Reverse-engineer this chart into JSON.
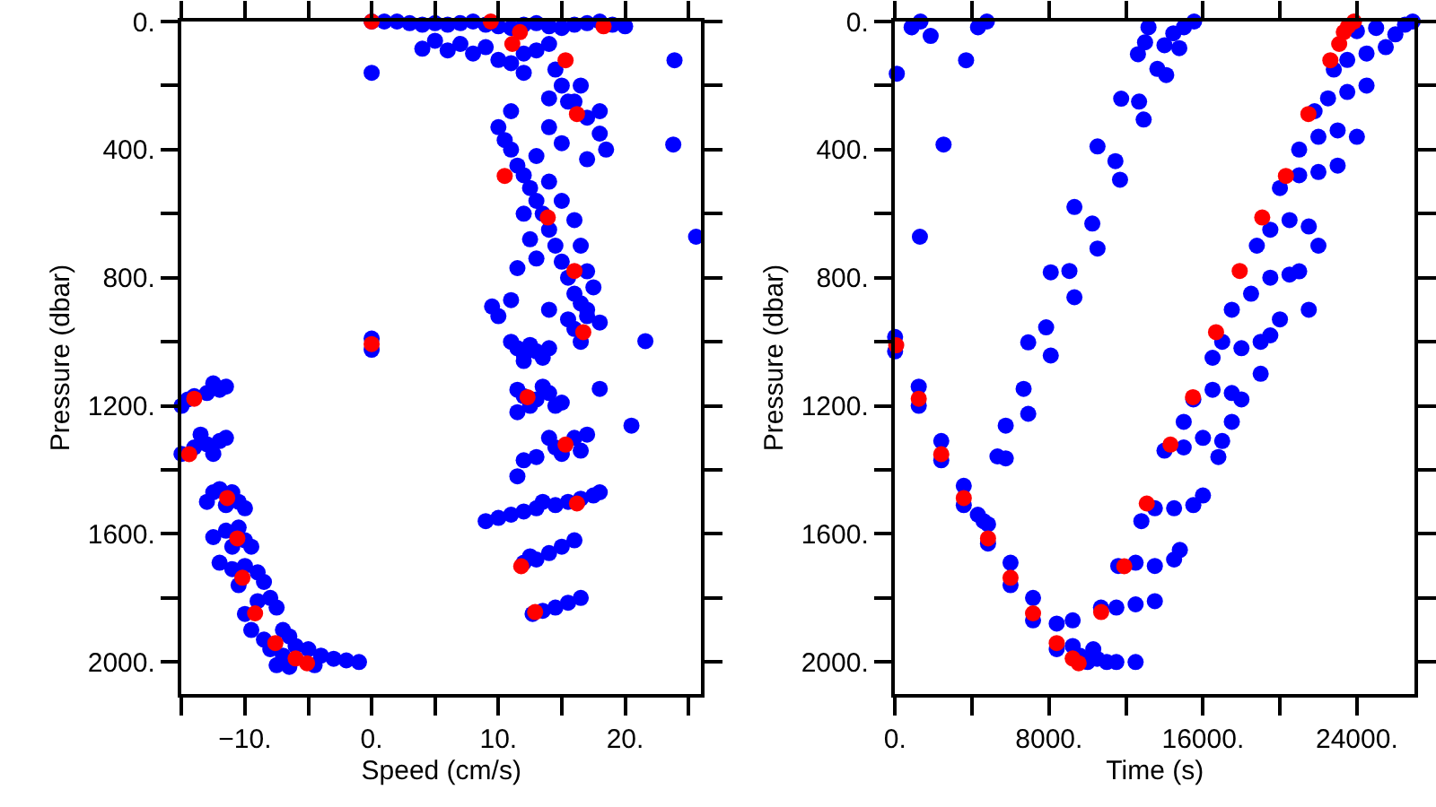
{
  "chart_data": [
    {
      "type": "scatter",
      "xlabel": "Speed (cm/s)",
      "ylabel": "Pressure (dbar)",
      "marker": "circle",
      "xlim": [
        -15,
        26
      ],
      "xticks": [
        {
          "value": -15,
          "label": null
        },
        {
          "value": -10,
          "label": "−10."
        },
        {
          "value": -5,
          "label": null
        },
        {
          "value": 0,
          "label": "0."
        },
        {
          "value": 5,
          "label": null
        },
        {
          "value": 10,
          "label": "10."
        },
        {
          "value": 15,
          "label": null
        },
        {
          "value": 20,
          "label": "20."
        },
        {
          "value": 25,
          "label": null
        }
      ],
      "ylim": [
        2100,
        0
      ],
      "yticks": [
        {
          "value": 0,
          "label": "0."
        },
        {
          "value": 200,
          "label": null
        },
        {
          "value": 400,
          "label": "400."
        },
        {
          "value": 600,
          "label": null
        },
        {
          "value": 800,
          "label": "800."
        },
        {
          "value": 1000,
          "label": null
        },
        {
          "value": 1200,
          "label": "1200."
        },
        {
          "value": 1400,
          "label": null
        },
        {
          "value": 1600,
          "label": "1600."
        },
        {
          "value": 1800,
          "label": null
        },
        {
          "value": 2000,
          "label": "2000."
        }
      ],
      "series": [
        {
          "color": "#0000ff",
          "x": [
            0,
            1,
            2,
            3,
            4,
            5,
            6,
            7,
            8,
            9,
            10,
            11,
            12,
            13,
            14,
            15,
            16,
            17,
            18,
            19,
            20,
            4,
            5,
            6,
            7,
            8,
            9,
            10,
            11,
            12,
            13,
            14,
            0,
            23.9,
            23.8,
            25.6,
            21.6,
            20.5,
            18.0,
            14.5,
            15,
            16,
            17,
            18,
            18.5,
            17,
            15,
            14,
            15.5,
            16.5,
            18,
            14,
            12,
            11,
            10,
            10.5,
            11,
            11.5,
            12,
            12.5,
            13,
            13.5,
            14,
            14.5,
            15,
            15.5,
            16,
            16.5,
            13,
            14,
            15,
            16,
            16.5,
            17,
            17.5,
            12,
            12.5,
            13,
            11.5,
            14,
            17,
            9.5,
            10,
            11,
            15.5,
            16,
            17,
            18,
            16.5,
            11,
            11.5,
            12,
            12.5,
            13,
            13.5,
            14,
            12,
            11.5,
            12,
            12.5,
            13,
            14,
            14.5,
            15,
            11.5,
            13.5,
            14,
            14.5,
            15,
            16,
            17,
            16.5,
            13,
            12,
            11.5,
            14.5,
            15.5,
            16.5,
            17.5,
            18,
            9,
            10,
            11,
            12,
            13,
            13.5,
            12,
            12.5,
            13,
            14,
            15,
            16,
            12.7,
            13.5,
            14.5,
            15.5,
            16.5,
            0,
            0,
            -15,
            -14.5,
            -14,
            -13,
            -12,
            -11.5,
            -12.5,
            -15,
            -14,
            -13,
            -12,
            -11.5,
            -13.5,
            -12.5,
            -13,
            -12.5,
            -12,
            -11,
            -10.5,
            -10,
            -11.5,
            -12.5,
            -11.5,
            -10.5,
            -10,
            -9.5,
            -11,
            -12,
            -11,
            -10,
            -9,
            -8.5,
            -10.5,
            -10,
            -9,
            -8,
            -7.5,
            -9.5,
            -8.5,
            -7,
            -6.5,
            -8,
            -7,
            -6,
            -5,
            -4,
            -3,
            -2,
            -1,
            -4.5,
            -6.5,
            -7.5
          ],
          "values": [
            0,
            0,
            0,
            5,
            10,
            5,
            10,
            5,
            0,
            10,
            15,
            20,
            10,
            5,
            15,
            20,
            10,
            5,
            0,
            10,
            15,
            85,
            60,
            90,
            70,
            100,
            80,
            120,
            130,
            100,
            90,
            70,
            160,
            121,
            384,
            672,
            998,
            1262,
            1147,
            150,
            200,
            250,
            300,
            350,
            400,
            430,
            380,
            330,
            250,
            200,
            280,
            240,
            160,
            280,
            330,
            370,
            400,
            450,
            480,
            520,
            560,
            600,
            650,
            700,
            750,
            800,
            850,
            880,
            420,
            500,
            560,
            620,
            700,
            780,
            830,
            600,
            680,
            740,
            770,
            900,
            900,
            890,
            920,
            870,
            930,
            960,
            920,
            940,
            1000,
            1000,
            1020,
            1040,
            1010,
            1030,
            1050,
            1020,
            1060,
            1150,
            1170,
            1200,
            1180,
            1160,
            1200,
            1190,
            1220,
            1140,
            1300,
            1330,
            1350,
            1300,
            1290,
            1340,
            1360,
            1370,
            1420,
            1510,
            1500,
            1490,
            1480,
            1470,
            1560,
            1550,
            1540,
            1530,
            1520,
            1500,
            1690,
            1670,
            1680,
            1660,
            1640,
            1620,
            1850,
            1840,
            1830,
            1815,
            1800,
            990,
            1025,
            1200,
            1180,
            1170,
            1160,
            1150,
            1140,
            1130,
            1350,
            1330,
            1320,
            1310,
            1300,
            1290,
            1350,
            1500,
            1470,
            1460,
            1470,
            1500,
            1520,
            1510,
            1610,
            1590,
            1580,
            1620,
            1640,
            1640,
            1690,
            1710,
            1700,
            1720,
            1750,
            1760,
            1850,
            1810,
            1800,
            1830,
            1900,
            1930,
            1900,
            1920,
            1960,
            1980,
            1950,
            1960,
            1980,
            1990,
            1995,
            2000,
            2010,
            2015,
            2010
          ]
        },
        {
          "color": "#ff0000",
          "x": [
            0,
            9.4,
            11.7,
            11.1,
            18.3,
            15.3,
            16.2,
            10.5,
            13.9,
            16.0,
            16.7,
            12.3,
            15.3,
            16.2,
            11.8,
            12.9,
            0,
            -14.0,
            -14.4,
            -11.4,
            -10.6,
            -10.2,
            -9.2,
            -7.6,
            -6.0,
            -5.4,
            -5.1
          ],
          "values": [
            0,
            0,
            33,
            70,
            15,
            121,
            289,
            482,
            612,
            779,
            970,
            1173,
            1321,
            1505,
            1701,
            1844,
            1007,
            1178,
            1351,
            1488,
            1614,
            1737,
            1848,
            1941,
            1989,
            null,
            2004
          ]
        }
      ]
    },
    {
      "type": "scatter",
      "xlabel": "Time (s)",
      "ylabel": "Pressure (dbar)",
      "marker": "circle",
      "xlim": [
        0,
        27000
      ],
      "xticks": [
        {
          "value": 0,
          "label": "0."
        },
        {
          "value": 4000,
          "label": null
        },
        {
          "value": 8000,
          "label": "8000."
        },
        {
          "value": 12000,
          "label": null
        },
        {
          "value": 16000,
          "label": "16000."
        },
        {
          "value": 20000,
          "label": null
        },
        {
          "value": 24000,
          "label": "24000."
        }
      ],
      "ylim": [
        2100,
        0
      ],
      "yticks": [
        {
          "value": 0,
          "label": "0."
        },
        {
          "value": 200,
          "label": null
        },
        {
          "value": 400,
          "label": "400."
        },
        {
          "value": 600,
          "label": null
        },
        {
          "value": 800,
          "label": "800."
        },
        {
          "value": 1000,
          "label": null
        },
        {
          "value": 1200,
          "label": "1200."
        },
        {
          "value": 1400,
          "label": null
        },
        {
          "value": 1600,
          "label": "1600."
        },
        {
          "value": 1800,
          "label": null
        },
        {
          "value": 2000,
          "label": "2000."
        }
      ],
      "series": [
        {
          "color": "#0000ff",
          "x": [
            90,
            1850,
            860,
            1320,
            3690,
            2520,
            1290,
            4310,
            4770,
            9320,
            10250,
            10520,
            10520,
            11450,
            11690,
            8090,
            9060,
            9320,
            7850,
            6920,
            8090,
            6680,
            6920,
            5750,
            5320,
            5750,
            11750,
            12680,
            12920,
            12620,
            12990,
            13170,
            13630,
            14090,
            14000,
            14460,
            15010,
            15540,
            14770,
            0,
            0,
            1230,
            1230,
            2400,
            2400,
            3570,
            3570,
            4300,
            4600,
            4830,
            4830,
            6000,
            6000,
            7170,
            7170,
            8400,
            8400,
            9230,
            9230,
            9600,
            10000,
            10500,
            11000,
            11500,
            12500,
            10300,
            10700,
            11500,
            12500,
            13500,
            11600,
            12500,
            13500,
            14500,
            14800,
            12800,
            13500,
            14500,
            15500,
            16000,
            14000,
            15000,
            16000,
            17000,
            16800,
            15000,
            15500,
            16500,
            17500,
            18000,
            17500,
            16500,
            17000,
            18000,
            19000,
            19500,
            17500,
            18500,
            19500,
            20500,
            21000,
            18800,
            19500,
            20500,
            21500,
            22000,
            20000,
            21000,
            22000,
            23000,
            21000,
            22000,
            23000,
            24000,
            21800,
            22500,
            23500,
            24500,
            22800,
            23500,
            24500,
            25500,
            26000,
            24000,
            25000,
            26500,
            26900,
            20000,
            21500,
            19000
          ],
          "values": [
            163,
            45,
            18,
            0,
            121,
            384,
            672,
            18,
            0,
            579,
            631,
            709,
            390,
            436,
            494,
            783,
            779,
            861,
            955,
            1002,
            1043,
            1147,
            1225,
            1262,
            1358,
            1364,
            241,
            250,
            306,
            102,
            65,
            18,
            148,
            167,
            74,
            37,
            18,
            0,
            83,
            985,
            1030,
            1140,
            1200,
            1310,
            1370,
            1450,
            1510,
            1540,
            1560,
            1570,
            1630,
            1690,
            1760,
            1800,
            1870,
            1880,
            1960,
            1870,
            1950,
            1980,
            2000,
            1990,
            2000,
            2000,
            2000,
            1960,
            1830,
            1830,
            1820,
            1810,
            1700,
            1690,
            1700,
            1680,
            1650,
            1560,
            1520,
            1520,
            1510,
            1480,
            1340,
            1330,
            1300,
            1310,
            1360,
            1250,
            1180,
            1150,
            1160,
            1180,
            1250,
            1050,
            1000,
            1020,
            1000,
            980,
            900,
            850,
            800,
            790,
            780,
            700,
            650,
            620,
            640,
            700,
            520,
            480,
            470,
            450,
            400,
            360,
            340,
            360,
            280,
            240,
            220,
            200,
            150,
            120,
            100,
            80,
            40,
            30,
            20,
            10,
            0,
            930,
            900,
            1100
          ]
        },
        {
          "color": "#ff0000",
          "x": [
            60,
            1230,
            2400,
            3570,
            4830,
            6000,
            7170,
            8400,
            9230,
            9540,
            10710,
            11910,
            13080,
            14310,
            15480,
            16680,
            17910,
            19080,
            20310,
            21480,
            22620,
            23080,
            23320,
            23540,
            23850
          ],
          "values": [
            1011,
            1178,
            1351,
            1488,
            1614,
            1737,
            1848,
            1941,
            1989,
            2004,
            1844,
            1701,
            1505,
            1321,
            1173,
            970,
            779,
            612,
            482,
            289,
            121,
            70,
            33,
            15,
            0
          ]
        }
      ]
    }
  ]
}
